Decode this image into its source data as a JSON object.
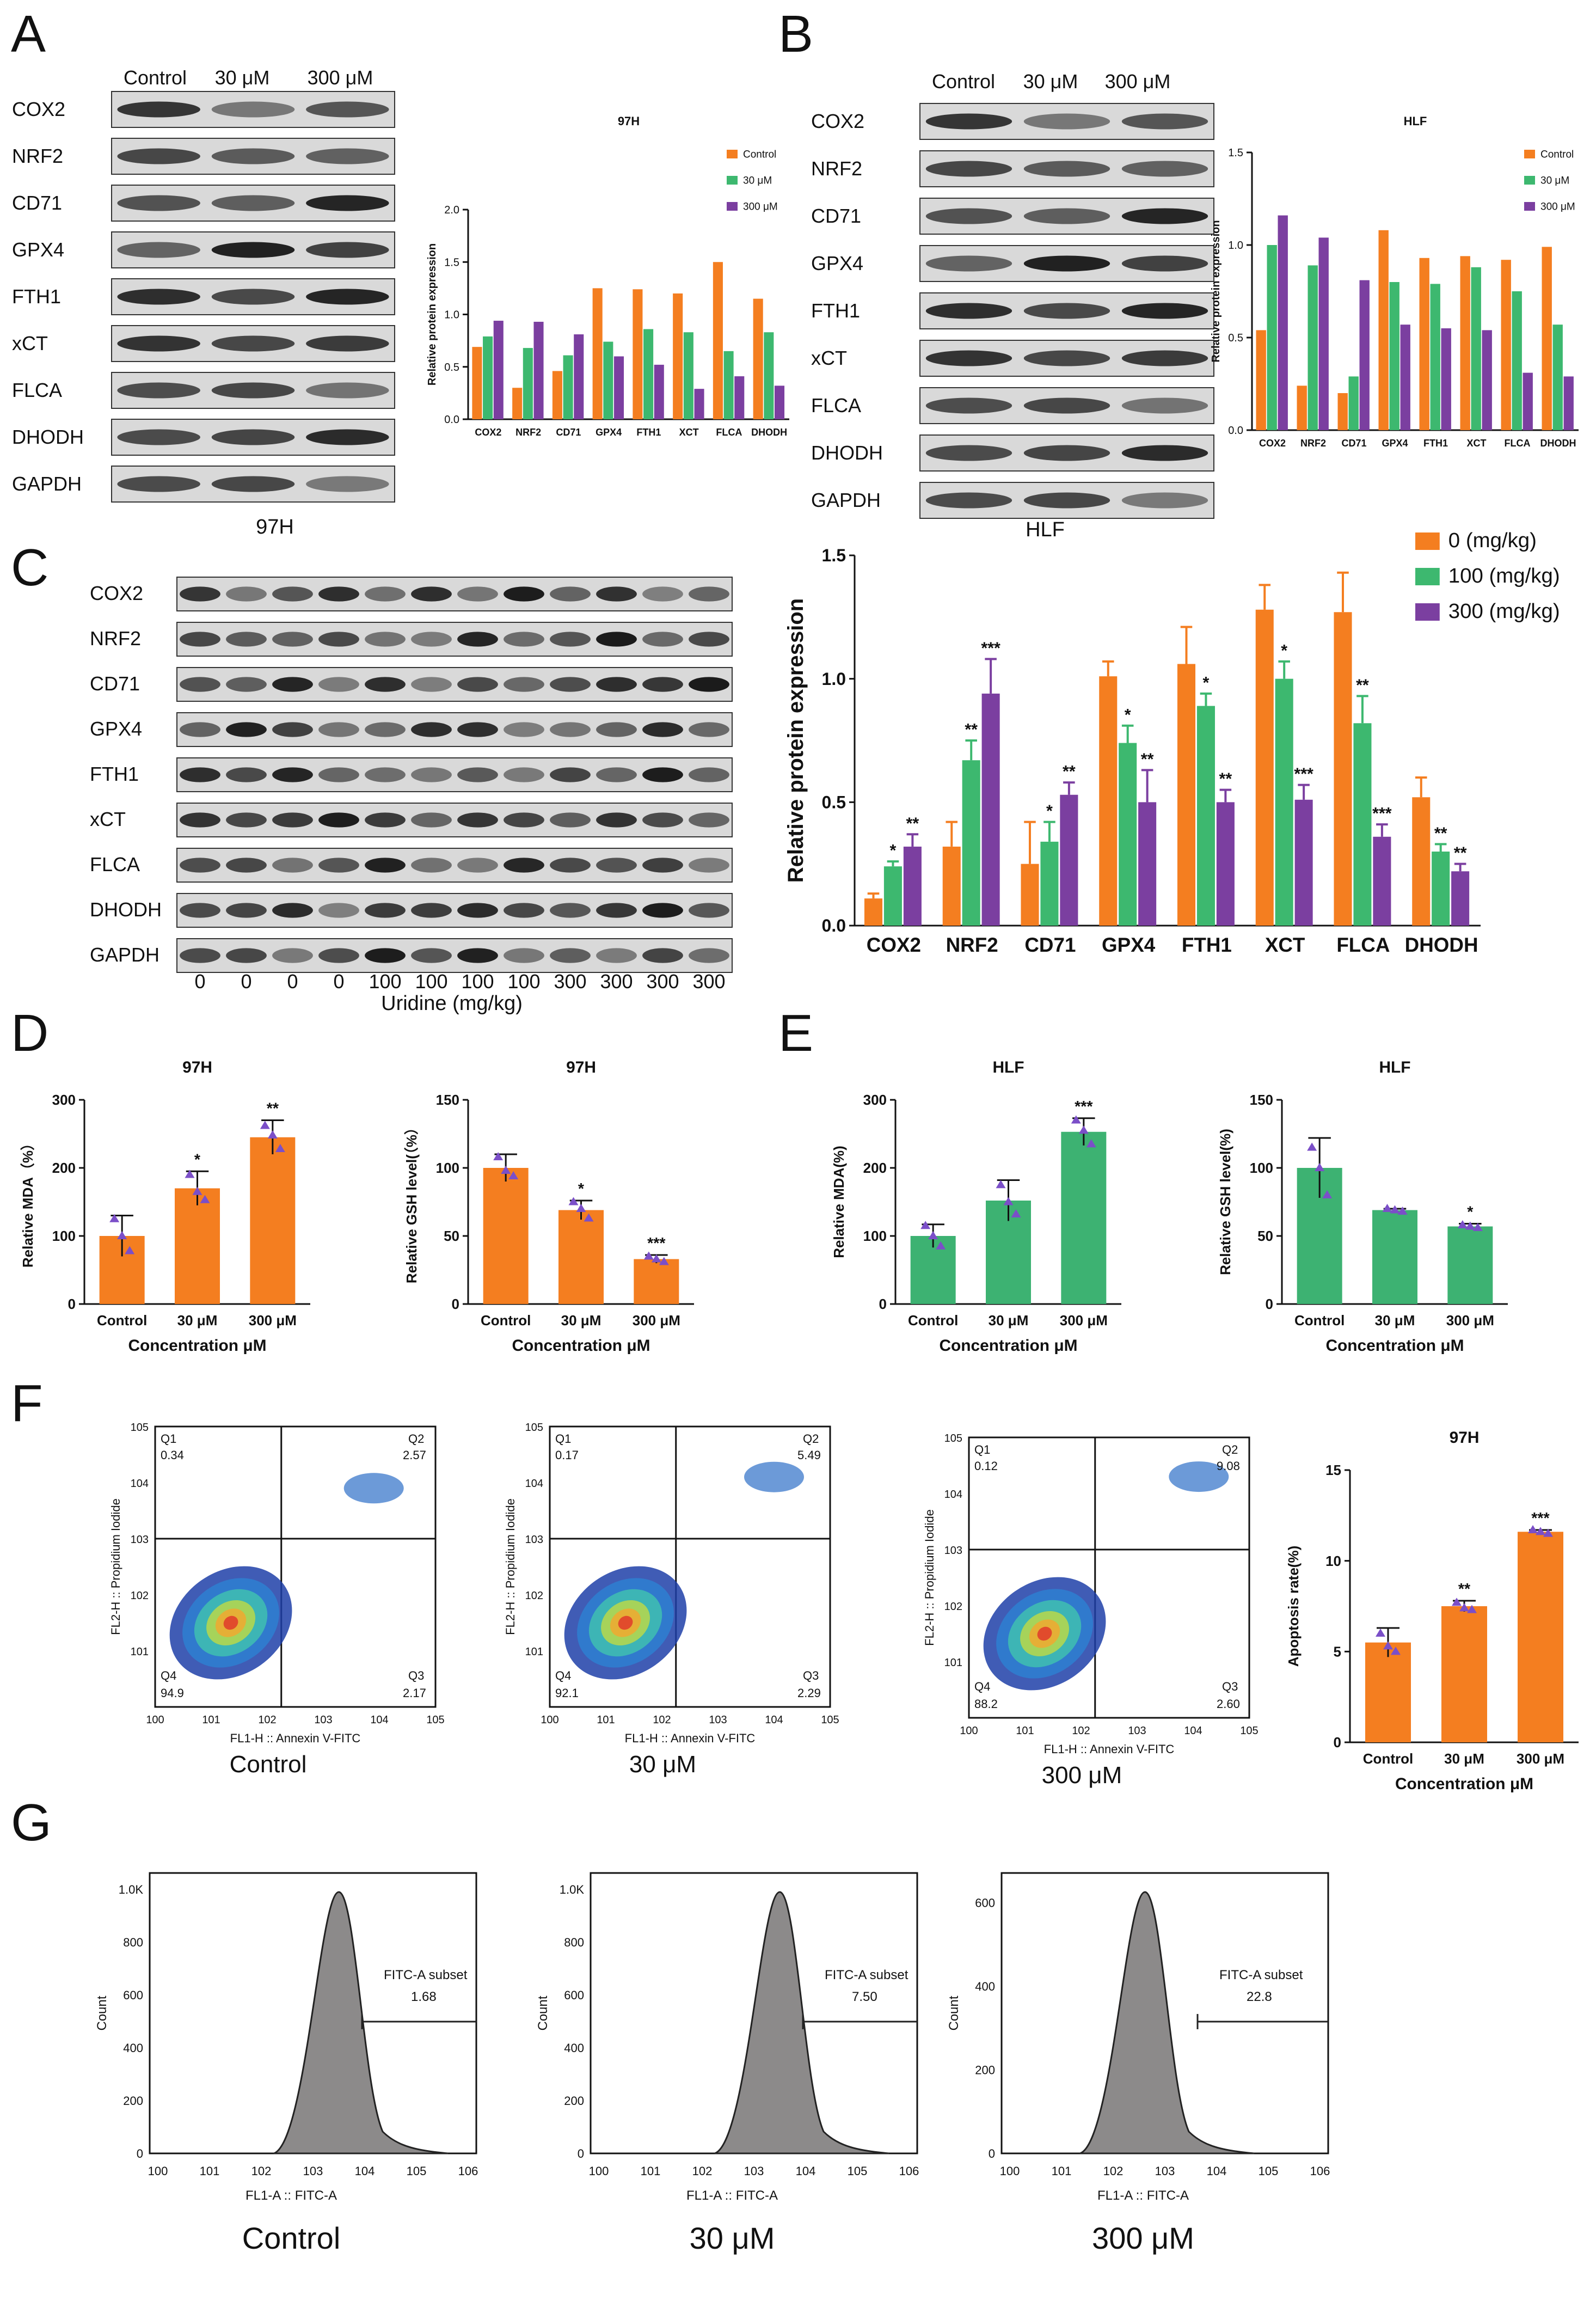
{
  "panels": {
    "A": {
      "letter": "A",
      "blot": {
        "columns": [
          "Control",
          "30 μM",
          "300 μM"
        ],
        "rows": [
          "COX2",
          "NRF2",
          "CD71",
          "GPX4",
          "FTH1",
          "xCT",
          "FLCA",
          "DHODH",
          "GAPDH"
        ],
        "caption": "97H"
      }
    },
    "B": {
      "letter": "B",
      "blot": {
        "columns": [
          "Control",
          "30 μM",
          "300 μM"
        ],
        "rows": [
          "COX2",
          "NRF2",
          "CD71",
          "GPX4",
          "FTH1",
          "xCT",
          "FLCA",
          "DHODH",
          "GAPDH"
        ],
        "caption": "HLF"
      }
    },
    "C": {
      "letter": "C",
      "blot": {
        "rows": [
          "COX2",
          "NRF2",
          "CD71",
          "GPX4",
          "FTH1",
          "xCT",
          "FLCA",
          "DHODH",
          "GAPDH"
        ],
        "lanes": [
          "0",
          "0",
          "0",
          "0",
          "100",
          "100",
          "100",
          "100",
          "300",
          "300",
          "300",
          "300"
        ],
        "xlabel": "Uridine (mg/kg)"
      }
    },
    "D": {
      "letter": "D"
    },
    "E": {
      "letter": "E"
    },
    "F": {
      "letter": "F",
      "flow": [
        {
          "caption": "Control",
          "q1": "0.34",
          "q2": "2.57",
          "q3": "2.17",
          "q4": "94.9"
        },
        {
          "caption": "30 μM",
          "q1": "0.17",
          "q2": "5.49",
          "q3": "2.29",
          "q4": "92.1"
        },
        {
          "caption": "300 μM",
          "q1": "0.12",
          "q2": "9.08",
          "q3": "2.60",
          "q4": "88.2"
        }
      ],
      "quadrant_labels": [
        "Q1",
        "Q2",
        "Q3",
        "Q4"
      ],
      "flow_xlabel": "FL1-H :: Annexin V-FITC",
      "flow_ylabel": "FL2-H :: Propidium Iodide"
    },
    "G": {
      "letter": "G",
      "histograms": [
        {
          "caption": "Control",
          "subset_label": "FITC-A subset",
          "subset_value": "1.68",
          "yticks": [
            "0",
            "200",
            "400",
            "600",
            "800",
            "1.0K"
          ]
        },
        {
          "caption": "30 μM",
          "subset_label": "FITC-A subset",
          "subset_value": "7.50",
          "yticks": [
            "0",
            "200",
            "400",
            "600",
            "800",
            "1.0K"
          ]
        },
        {
          "caption": "300 μM",
          "subset_label": "FITC-A subset",
          "subset_value": "22.8",
          "yticks": [
            "0",
            "200",
            "400",
            "600"
          ]
        }
      ],
      "xlabel": "FL1-A :: FITC-A",
      "ylabel": "Count"
    }
  },
  "colors": {
    "orange": "#F47E20",
    "green": "#3DB86F",
    "purple": "#7B3FA0",
    "d_orange": "#F47E20",
    "e_green": "#3DB272"
  },
  "chart_data": [
    {
      "id": "A-bar",
      "type": "bar",
      "title": "97H",
      "ylabel": "Relative protein expression",
      "categories": [
        "COX2",
        "NRF2",
        "CD71",
        "GPX4",
        "FTH1",
        "XCT",
        "FLCA",
        "DHODH"
      ],
      "series": [
        {
          "name": "Control",
          "values": [
            0.69,
            0.3,
            0.46,
            1.25,
            1.24,
            1.2,
            1.5,
            1.15
          ]
        },
        {
          "name": "30 μM",
          "values": [
            0.79,
            0.68,
            0.61,
            0.74,
            0.86,
            0.83,
            0.65,
            0.83
          ]
        },
        {
          "name": "300 μM",
          "values": [
            0.94,
            0.93,
            0.81,
            0.6,
            0.52,
            0.29,
            0.41,
            0.32
          ]
        }
      ],
      "ylim": [
        0,
        2.0
      ],
      "yticks": [
        "0.0",
        "0.5",
        "1.0",
        "1.5",
        "2.0"
      ],
      "legend": "top-right"
    },
    {
      "id": "B-bar",
      "type": "bar",
      "title": "HLF",
      "ylabel": "Relative protein expression",
      "categories": [
        "COX2",
        "NRF2",
        "CD71",
        "GPX4",
        "FTH1",
        "XCT",
        "FLCA",
        "DHODH"
      ],
      "series": [
        {
          "name": "Control",
          "values": [
            0.54,
            0.24,
            0.2,
            1.08,
            0.93,
            0.94,
            0.92,
            0.99
          ]
        },
        {
          "name": "30 μM",
          "values": [
            1.0,
            0.89,
            0.29,
            0.8,
            0.79,
            0.88,
            0.75,
            0.57
          ]
        },
        {
          "name": "300 μM",
          "values": [
            1.16,
            1.04,
            0.81,
            0.57,
            0.55,
            0.54,
            0.31,
            0.29
          ]
        }
      ],
      "ylim": [
        0,
        1.5
      ],
      "yticks": [
        "0.0",
        "0.5",
        "1.0",
        "1.5"
      ],
      "legend": "top-right"
    },
    {
      "id": "C-bar",
      "type": "bar",
      "ylabel": "Relative protein expression",
      "categories": [
        "COX2",
        "NRF2",
        "CD71",
        "GPX4",
        "FTH1",
        "XCT",
        "FLCA",
        "DHODH"
      ],
      "series": [
        {
          "name": "0 (mg/kg)",
          "values": [
            0.11,
            0.32,
            0.25,
            1.01,
            1.06,
            1.28,
            1.27,
            0.52
          ],
          "errors": [
            0.02,
            0.1,
            0.17,
            0.06,
            0.15,
            0.1,
            0.16,
            0.08
          ],
          "stars": [
            "",
            "",
            "",
            "",
            "",
            "",
            "",
            ""
          ]
        },
        {
          "name": "100 (mg/kg)",
          "values": [
            0.24,
            0.67,
            0.34,
            0.74,
            0.89,
            1.0,
            0.82,
            0.3
          ],
          "errors": [
            0.02,
            0.08,
            0.08,
            0.07,
            0.05,
            0.07,
            0.11,
            0.03
          ],
          "stars": [
            "*",
            "**",
            "*",
            "*",
            "*",
            "*",
            "**",
            "**"
          ]
        },
        {
          "name": "300 (mg/kg)",
          "values": [
            0.32,
            0.94,
            0.53,
            0.5,
            0.5,
            0.51,
            0.36,
            0.22
          ],
          "errors": [
            0.05,
            0.14,
            0.05,
            0.13,
            0.05,
            0.06,
            0.05,
            0.03
          ],
          "stars": [
            "**",
            "***",
            "**",
            "**",
            "**",
            "***",
            "***",
            "**"
          ]
        }
      ],
      "ylim": [
        0,
        1.5
      ],
      "yticks": [
        "0.0",
        "0.5",
        "1.0",
        "1.5"
      ],
      "legend": "top-right"
    },
    {
      "id": "D-mda",
      "type": "bar",
      "title": "97H",
      "xlabel": "Concentration μM",
      "ylabel": "Relative MDA（%）",
      "categories": [
        "Control",
        "30 μM",
        "300 μM"
      ],
      "values": [
        100,
        170,
        245
      ],
      "errors": [
        30,
        25,
        25
      ],
      "points": [
        [
          125,
          100,
          78
        ],
        [
          190,
          165,
          153
        ],
        [
          262,
          248,
          228
        ]
      ],
      "stars": [
        "",
        "*",
        "**"
      ],
      "ylim": [
        0,
        300
      ],
      "yticks": [
        "0",
        "100",
        "200",
        "300"
      ]
    },
    {
      "id": "D-gsh",
      "type": "bar",
      "title": "97H",
      "xlabel": "Concentration μM",
      "ylabel": "Relative GSH level(（%）",
      "categories": [
        "Control",
        "30 μM",
        "300 μM"
      ],
      "values": [
        100,
        69,
        33
      ],
      "errors": [
        10,
        7,
        3
      ],
      "points": [
        [
          108,
          98,
          94
        ],
        [
          75,
          70,
          63
        ],
        [
          35,
          33,
          31
        ]
      ],
      "stars": [
        "",
        "*",
        "***"
      ],
      "ylim": [
        0,
        150
      ],
      "yticks": [
        "0",
        "50",
        "100",
        "150"
      ]
    },
    {
      "id": "E-mda",
      "type": "bar",
      "title": "HLF",
      "xlabel": "Concentration μM",
      "ylabel": "Relative MDA(%)",
      "categories": [
        "Control",
        "30 μM",
        "300 μM"
      ],
      "values": [
        100,
        152,
        253
      ],
      "errors": [
        17,
        30,
        20
      ],
      "points": [
        [
          115,
          100,
          85
        ],
        [
          175,
          150,
          132
        ],
        [
          270,
          255,
          235
        ]
      ],
      "stars": [
        "",
        "",
        "***"
      ],
      "ylim": [
        0,
        300
      ],
      "yticks": [
        "0",
        "100",
        "200",
        "300"
      ]
    },
    {
      "id": "E-gsh",
      "type": "bar",
      "title": "HLF",
      "xlabel": "Concentration μM",
      "ylabel": "Relative GSH level(%)",
      "categories": [
        "Control",
        "30 μM",
        "300 μM"
      ],
      "values": [
        100,
        69,
        57
      ],
      "errors": [
        22,
        1,
        2
      ],
      "points": [
        [
          115,
          100,
          80
        ],
        [
          70,
          69,
          68
        ],
        [
          58,
          57,
          56
        ]
      ],
      "stars": [
        "",
        "",
        "*"
      ],
      "ylim": [
        0,
        150
      ],
      "yticks": [
        "0",
        "50",
        "100",
        "150"
      ]
    },
    {
      "id": "F-apop",
      "type": "bar",
      "title": "97H",
      "xlabel": "Concentration μM",
      "ylabel": "Apoptosis rate(%)",
      "categories": [
        "Control",
        "30 μM",
        "300 μM"
      ],
      "values": [
        5.5,
        7.5,
        11.6
      ],
      "errors": [
        0.8,
        0.3,
        0.1
      ],
      "points": [
        [
          6.0,
          5.3,
          5.0
        ],
        [
          7.7,
          7.4,
          7.3
        ],
        [
          11.7,
          11.6,
          11.5
        ]
      ],
      "stars": [
        "",
        "**",
        "***"
      ],
      "ylim": [
        0,
        15
      ],
      "yticks": [
        "0",
        "5",
        "10",
        "15"
      ]
    }
  ]
}
